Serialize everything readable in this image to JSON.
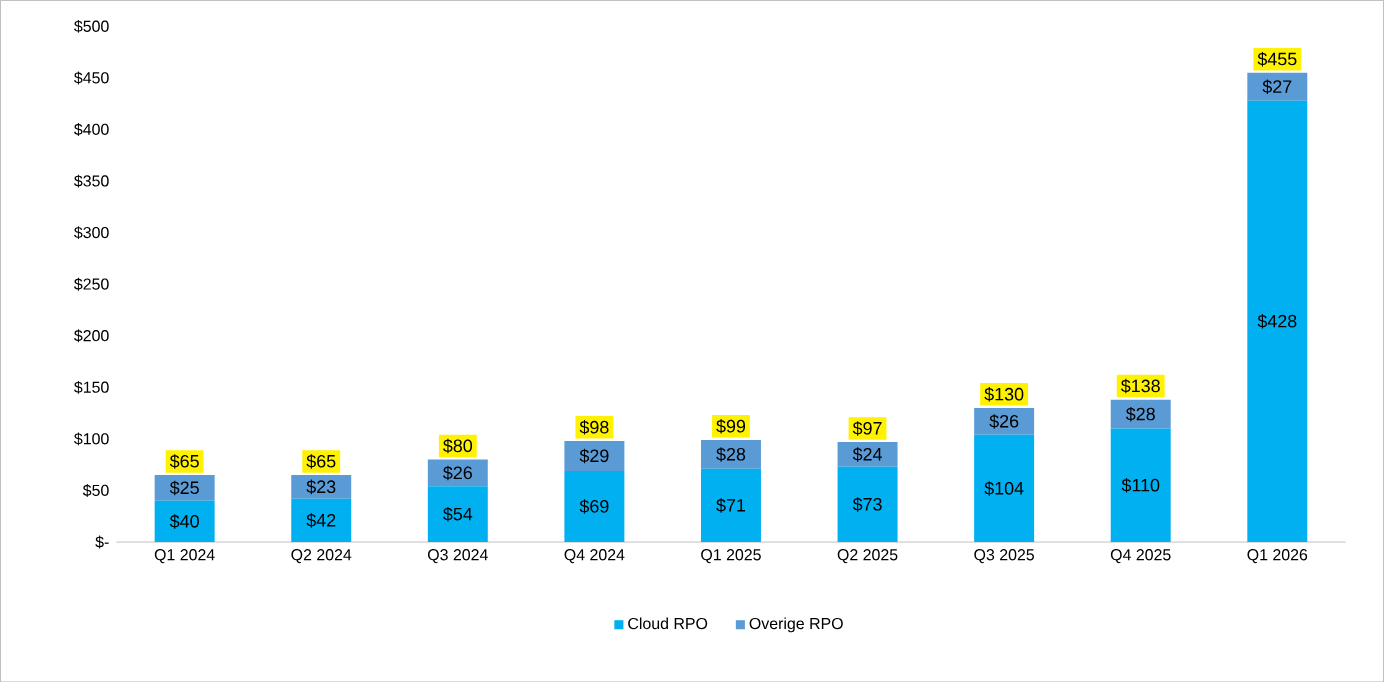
{
  "chart_data": {
    "type": "bar",
    "stacked": true,
    "categories": [
      "Q1 2024",
      "Q2 2024",
      "Q3 2024",
      "Q4 2024",
      "Q1 2025",
      "Q2 2025",
      "Q3 2025",
      "Q4 2025",
      "Q1 2026"
    ],
    "series": [
      {
        "name": "Cloud RPO",
        "color": "#00b0f0",
        "values": [
          40,
          42,
          54,
          69,
          71,
          73,
          104,
          110,
          428
        ],
        "value_labels": [
          "$40",
          "$42",
          "$54",
          "$69",
          "$71",
          "$73",
          "$104",
          "$110",
          "$428"
        ]
      },
      {
        "name": "Overige RPO",
        "color": "#5b9bd5",
        "values": [
          25,
          23,
          26,
          29,
          28,
          24,
          26,
          28,
          27
        ],
        "value_labels": [
          "$25",
          "$23",
          "$26",
          "$29",
          "$28",
          "$24",
          "$26",
          "$28",
          "$27"
        ]
      }
    ],
    "totals": [
      "$65",
      "$65",
      "$80",
      "$98",
      "$99",
      "$97",
      "$130",
      "$138",
      "$455"
    ],
    "ylim": [
      0,
      500
    ],
    "yticks": [
      {
        "value": 0,
        "label": "$-"
      },
      {
        "value": 50,
        "label": "$50"
      },
      {
        "value": 100,
        "label": "$100"
      },
      {
        "value": 150,
        "label": "$150"
      },
      {
        "value": 200,
        "label": "$200"
      },
      {
        "value": 250,
        "label": "$250"
      },
      {
        "value": 300,
        "label": "$300"
      },
      {
        "value": 350,
        "label": "$350"
      },
      {
        "value": 400,
        "label": "$400"
      },
      {
        "value": 450,
        "label": "$450"
      },
      {
        "value": 500,
        "label": "$500"
      }
    ],
    "legend": "bottom",
    "grid": false
  }
}
